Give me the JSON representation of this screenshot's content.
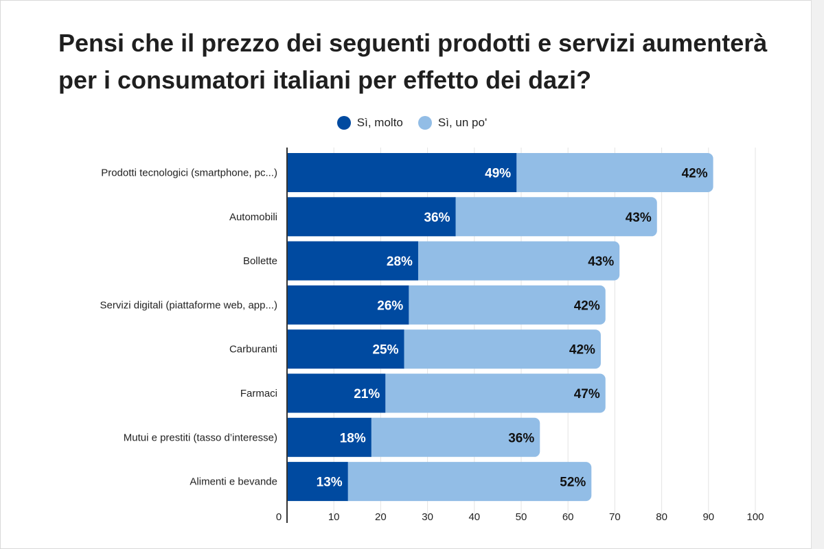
{
  "chart_data": {
    "type": "bar",
    "orientation": "horizontal",
    "stacked": true,
    "title": "Pensi che il prezzo dei seguenti prodotti e servizi aumenterà per i consumatori italiani per effetto dei dazi?",
    "categories": [
      "Prodotti tecnologici (smartphone, pc...)",
      "Automobili",
      "Bollette",
      "Servizi digitali (piattaforme web, app...)",
      "Carburanti",
      "Farmaci",
      "Mutui e prestiti (tasso d’interesse)",
      "Alimenti e bevande"
    ],
    "series": [
      {
        "name": "Sì, molto",
        "color": "#004aa0",
        "label_color": "#ffffff",
        "values": [
          49,
          36,
          28,
          26,
          25,
          21,
          18,
          13
        ]
      },
      {
        "name": "Sì, un po'",
        "color": "#92bde6",
        "label_color": "#111111",
        "values": [
          42,
          43,
          43,
          42,
          42,
          47,
          36,
          52
        ]
      }
    ],
    "value_suffix": "%",
    "xlim": [
      0,
      100
    ],
    "xticks": [
      0,
      10,
      20,
      30,
      40,
      50,
      60,
      70,
      80,
      90,
      100
    ],
    "grid": true,
    "legend": "top-center"
  }
}
